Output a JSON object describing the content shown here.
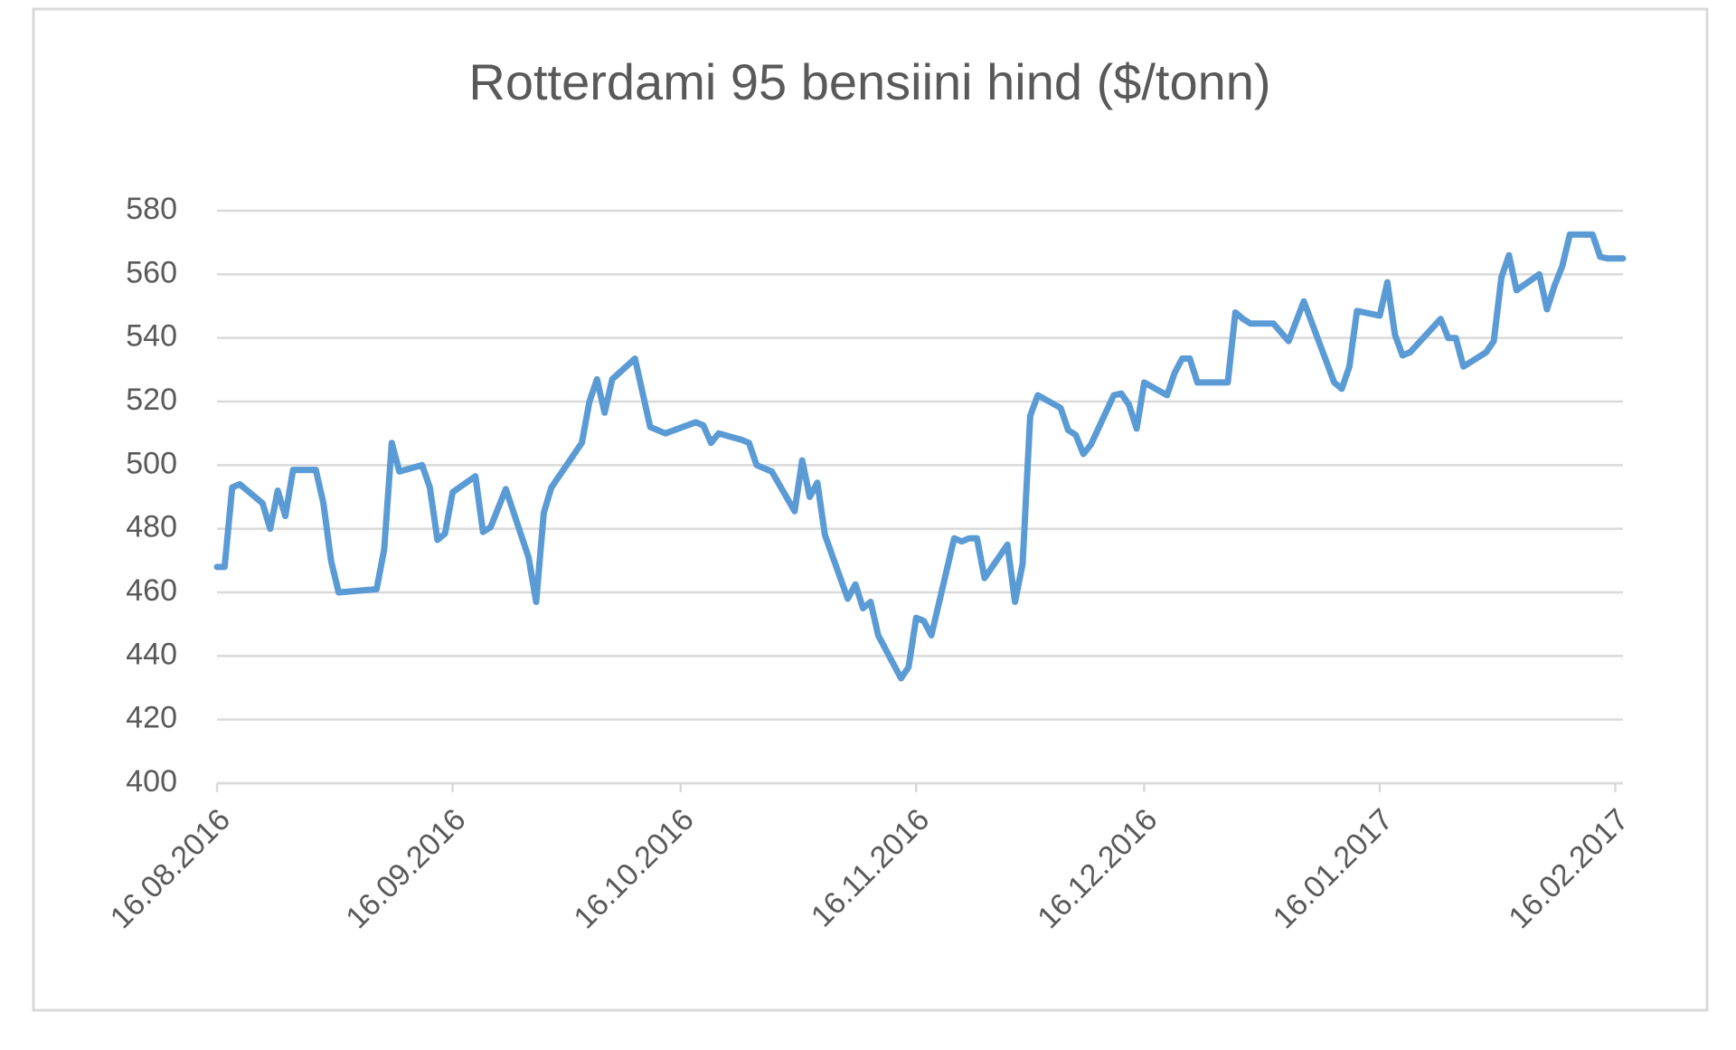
{
  "chart_data": {
    "type": "line",
    "title": "Rotterdami 95 bensiini hind ($/tonn)",
    "x": [
      "16.08.2016",
      "17.08.2016",
      "18.08.2016",
      "19.08.2016",
      "22.08.2016",
      "23.08.2016",
      "24.08.2016",
      "25.08.2016",
      "26.08.2016",
      "29.08.2016",
      "30.08.2016",
      "31.08.2016",
      "01.09.2016",
      "06.09.2016",
      "07.09.2016",
      "08.09.2016",
      "09.09.2016",
      "12.09.2016",
      "13.09.2016",
      "14.09.2016",
      "15.09.2016",
      "16.09.2016",
      "19.09.2016",
      "20.09.2016",
      "21.09.2016",
      "23.09.2016",
      "26.09.2016",
      "27.09.2016",
      "28.09.2016",
      "29.09.2016",
      "03.10.2016",
      "04.10.2016",
      "05.10.2016",
      "06.10.2016",
      "07.10.2016",
      "10.10.2016",
      "12.10.2016",
      "14.10.2016",
      "18.10.2016",
      "19.10.2016",
      "20.10.2016",
      "21.10.2016",
      "24.10.2016",
      "25.10.2016",
      "26.10.2016",
      "28.10.2016",
      "31.10.2016",
      "01.11.2016",
      "02.11.2016",
      "03.11.2016",
      "04.11.2016",
      "07.11.2016",
      "08.11.2016",
      "09.11.2016",
      "10.11.2016",
      "11.11.2016",
      "14.11.2016",
      "15.11.2016",
      "16.11.2016",
      "17.11.2016",
      "18.11.2016",
      "21.11.2016",
      "22.11.2016",
      "23.11.2016",
      "24.11.2016",
      "25.11.2016",
      "28.11.2016",
      "29.11.2016",
      "30.11.2016",
      "01.12.2016",
      "02.12.2016",
      "05.12.2016",
      "06.12.2016",
      "07.12.2016",
      "08.12.2016",
      "09.12.2016",
      "12.12.2016",
      "13.12.2016",
      "14.12.2016",
      "15.12.2016",
      "16.12.2016",
      "19.12.2016",
      "20.12.2016",
      "21.12.2016",
      "22.12.2016",
      "23.12.2016",
      "27.12.2016",
      "28.12.2016",
      "29.12.2016",
      "30.12.2016",
      "02.01.2017",
      "04.01.2017",
      "06.01.2017",
      "10.01.2017",
      "11.01.2017",
      "12.01.2017",
      "13.01.2017",
      "16.01.2017",
      "17.01.2017",
      "18.01.2017",
      "19.01.2017",
      "20.01.2017",
      "24.01.2017",
      "25.01.2017",
      "26.01.2017",
      "27.01.2017",
      "30.01.2017",
      "31.01.2017",
      "01.02.2017",
      "02.02.2017",
      "03.02.2017",
      "06.02.2017",
      "07.02.2017",
      "08.02.2017",
      "09.02.2017",
      "10.02.2017",
      "13.02.2017",
      "14.02.2017",
      "15.02.2017",
      "17.02.2017"
    ],
    "series": [
      {
        "name": "Rotterdami 95 bensiini hind",
        "color": "#5b9bd5",
        "values": [
          468,
          468,
          493,
          494,
          488,
          480,
          492,
          484,
          498.5,
          498.5,
          488,
          470,
          460,
          461,
          473.5,
          507,
          498,
          500,
          493,
          476.5,
          478.5,
          491.5,
          496.5,
          479,
          480.5,
          492.5,
          471,
          457,
          485,
          493,
          507,
          520,
          527,
          516.5,
          527,
          533.5,
          512,
          510,
          513.5,
          512.5,
          507,
          510,
          508,
          507,
          500,
          498,
          485.5,
          501.5,
          490,
          494.5,
          478,
          458,
          462.5,
          455,
          457,
          446.5,
          433,
          436.5,
          452,
          451,
          446.5,
          477,
          476,
          477,
          477,
          464.5,
          475,
          457,
          469,
          515.5,
          522,
          518,
          511,
          509.5,
          503.5,
          506.5,
          522,
          522.5,
          519,
          511.5,
          526,
          522,
          529,
          533.5,
          533.5,
          526,
          526,
          548,
          546,
          544.5,
          544.5,
          539,
          551.5,
          526,
          524,
          531,
          548.5,
          547,
          557.5,
          541,
          534.5,
          535.5,
          546,
          540,
          540,
          531,
          535.5,
          539,
          559,
          566,
          555,
          560,
          549,
          556.5,
          562.5,
          572.5,
          572.5,
          565.5,
          565,
          565
        ]
      }
    ],
    "xlim": [
      "16.08.2016",
      "17.02.2017"
    ],
    "xticks": [
      "16.08.2016",
      "16.09.2016",
      "16.10.2016",
      "16.11.2016",
      "16.12.2016",
      "16.01.2017",
      "16.02.2017"
    ],
    "ylim": [
      400,
      580
    ],
    "yticks": [
      400,
      420,
      440,
      460,
      480,
      500,
      520,
      540,
      560,
      580
    ],
    "grid": true
  }
}
